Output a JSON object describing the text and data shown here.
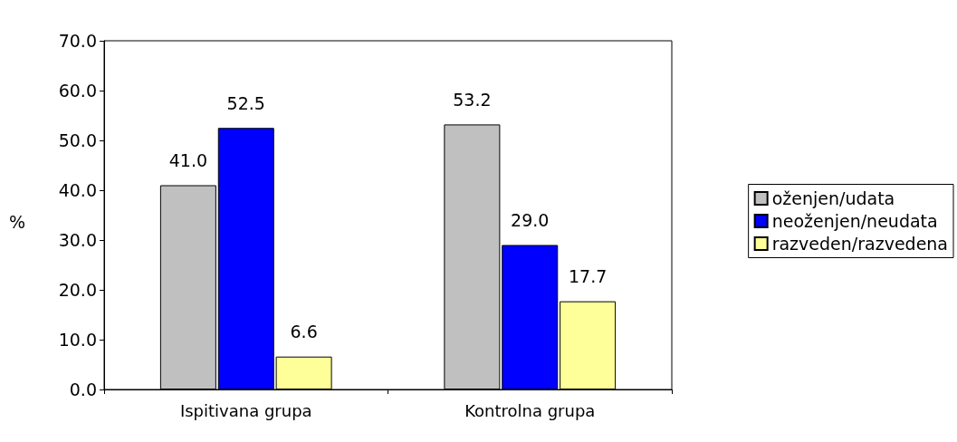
{
  "chart_data": {
    "type": "bar",
    "ylabel": "%",
    "categories": [
      "Ispitivana grupa",
      "Kontrolna grupa"
    ],
    "series": [
      {
        "name": "oženjen/udata",
        "color": "#c0c0c0",
        "values": [
          41.0,
          53.2
        ],
        "value_labels": [
          "41.0",
          "53.2"
        ]
      },
      {
        "name": "neoženjen/neudata",
        "color": "#0000ff",
        "values": [
          52.5,
          29.0
        ],
        "value_labels": [
          "52.5",
          "29.0"
        ]
      },
      {
        "name": "razveden/razvedena",
        "color": "#ffff99",
        "values": [
          6.6,
          17.7
        ],
        "value_labels": [
          "6.6",
          "17.7"
        ]
      }
    ],
    "ylim": [
      0,
      70
    ],
    "yticks": [
      {
        "value": 0,
        "label": "0.0"
      },
      {
        "value": 10,
        "label": "10.0"
      },
      {
        "value": 20,
        "label": "20.0"
      },
      {
        "value": 30,
        "label": "30.0"
      },
      {
        "value": 40,
        "label": "40.0"
      },
      {
        "value": 50,
        "label": "50.0"
      },
      {
        "value": 60,
        "label": "60.0"
      },
      {
        "value": 70,
        "label": "70.0"
      }
    ],
    "legend": "right"
  }
}
